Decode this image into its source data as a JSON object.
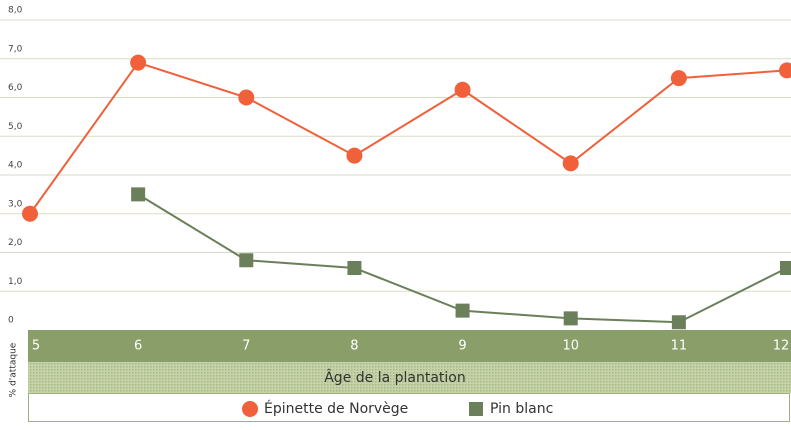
{
  "chart_data": {
    "type": "line",
    "x": [
      5,
      6,
      7,
      8,
      9,
      10,
      11,
      12
    ],
    "xlim": [
      5,
      12
    ],
    "xticks": [
      5,
      6,
      7,
      8,
      9,
      10,
      11,
      12
    ],
    "xlabel": "Âge de la plantation",
    "ylabel": "% d'attaque",
    "ylim": [
      0,
      8
    ],
    "yticks": [
      0,
      {
        "value": 1,
        "label": "1,0"
      },
      {
        "value": 2,
        "label": "2,0"
      },
      {
        "value": 3,
        "label": "3,0"
      },
      {
        "value": 4,
        "label": "4,0"
      },
      {
        "value": 5,
        "label": "5,0"
      },
      {
        "value": 6,
        "label": "6,0"
      },
      {
        "value": 7,
        "label": "7,0"
      },
      {
        "value": 8,
        "label": "8,0"
      }
    ],
    "grid": true,
    "legend": "bottom",
    "series": [
      {
        "name": "Épinette de Norvège",
        "color": "#f0603a",
        "marker": "circle",
        "values": [
          3.0,
          6.9,
          6.0,
          4.5,
          6.2,
          4.3,
          6.5,
          6.7
        ]
      },
      {
        "name": "Pin blanc",
        "color": "#6b7f5a",
        "marker": "square",
        "values": [
          null,
          3.5,
          1.8,
          1.6,
          0.5,
          0.3,
          0.2,
          1.6
        ]
      }
    ]
  }
}
